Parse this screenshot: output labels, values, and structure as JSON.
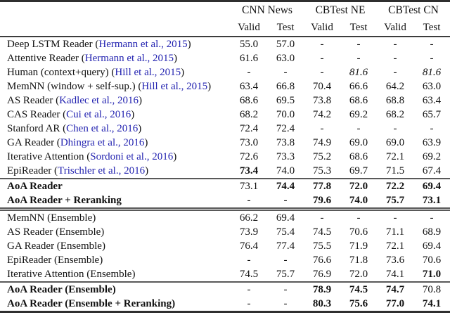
{
  "colors": {
    "citation_blue": "#2222b0",
    "text": "#111111",
    "heavy_rule": "#2f2f2f",
    "light_rule": "#595959"
  },
  "table": {
    "column_groups": [
      {
        "label": "CNN News",
        "sub": [
          "Valid",
          "Test"
        ]
      },
      {
        "label": "CBTest NE",
        "sub": [
          "Valid",
          "Test"
        ]
      },
      {
        "label": "CBTest CN",
        "sub": [
          "Valid",
          "Test"
        ]
      }
    ],
    "sections": [
      {
        "name": "single-models",
        "rows": [
          {
            "pre": "Deep LSTM Reader (",
            "cite": "Hermann et al., 2015",
            "post": ")",
            "bold_label": false,
            "cells": [
              {
                "t": "55.0",
                "s": ""
              },
              {
                "t": "57.0",
                "s": ""
              },
              {
                "t": "-",
                "s": ""
              },
              {
                "t": "-",
                "s": ""
              },
              {
                "t": "-",
                "s": ""
              },
              {
                "t": "-",
                "s": ""
              }
            ]
          },
          {
            "pre": "Attentive Reader (",
            "cite": "Hermann et al., 2015",
            "post": ")",
            "bold_label": false,
            "cells": [
              {
                "t": "61.6",
                "s": ""
              },
              {
                "t": "63.0",
                "s": ""
              },
              {
                "t": "-",
                "s": ""
              },
              {
                "t": "-",
                "s": ""
              },
              {
                "t": "-",
                "s": ""
              },
              {
                "t": "-",
                "s": ""
              }
            ]
          },
          {
            "pre": "Human (context+query) (",
            "cite": "Hill et al., 2015",
            "post": ")",
            "bold_label": false,
            "cells": [
              {
                "t": "-",
                "s": ""
              },
              {
                "t": "-",
                "s": ""
              },
              {
                "t": "-",
                "s": ""
              },
              {
                "t": "81.6",
                "s": "i"
              },
              {
                "t": "-",
                "s": ""
              },
              {
                "t": "81.6",
                "s": "i"
              }
            ]
          },
          {
            "pre": "MemNN (window + self-sup.) (",
            "cite": "Hill et al., 2015",
            "post": ")",
            "bold_label": false,
            "cells": [
              {
                "t": "63.4",
                "s": ""
              },
              {
                "t": "66.8",
                "s": ""
              },
              {
                "t": "70.4",
                "s": ""
              },
              {
                "t": "66.6",
                "s": ""
              },
              {
                "t": "64.2",
                "s": ""
              },
              {
                "t": "63.0",
                "s": ""
              }
            ]
          },
          {
            "pre": "AS Reader (",
            "cite": "Kadlec et al., 2016",
            "post": ")",
            "bold_label": false,
            "cells": [
              {
                "t": "68.6",
                "s": ""
              },
              {
                "t": "69.5",
                "s": ""
              },
              {
                "t": "73.8",
                "s": ""
              },
              {
                "t": "68.6",
                "s": ""
              },
              {
                "t": "68.8",
                "s": ""
              },
              {
                "t": "63.4",
                "s": ""
              }
            ]
          },
          {
            "pre": "CAS Reader (",
            "cite": "Cui et al., 2016",
            "post": ")",
            "bold_label": false,
            "cells": [
              {
                "t": "68.2",
                "s": ""
              },
              {
                "t": "70.0",
                "s": ""
              },
              {
                "t": "74.2",
                "s": ""
              },
              {
                "t": "69.2",
                "s": ""
              },
              {
                "t": "68.2",
                "s": ""
              },
              {
                "t": "65.7",
                "s": ""
              }
            ]
          },
          {
            "pre": "Stanford AR (",
            "cite": "Chen et al., 2016",
            "post": ")",
            "bold_label": false,
            "cells": [
              {
                "t": "72.4",
                "s": ""
              },
              {
                "t": "72.4",
                "s": ""
              },
              {
                "t": "-",
                "s": ""
              },
              {
                "t": "-",
                "s": ""
              },
              {
                "t": "-",
                "s": ""
              },
              {
                "t": "-",
                "s": ""
              }
            ]
          },
          {
            "pre": "GA Reader (",
            "cite": "Dhingra et al., 2016",
            "post": ")",
            "bold_label": false,
            "cells": [
              {
                "t": "73.0",
                "s": ""
              },
              {
                "t": "73.8",
                "s": ""
              },
              {
                "t": "74.9",
                "s": ""
              },
              {
                "t": "69.0",
                "s": ""
              },
              {
                "t": "69.0",
                "s": ""
              },
              {
                "t": "63.9",
                "s": ""
              }
            ]
          },
          {
            "pre": "Iterative Attention (",
            "cite": "Sordoni et al., 2016",
            "post": ")",
            "bold_label": false,
            "cells": [
              {
                "t": "72.6",
                "s": ""
              },
              {
                "t": "73.3",
                "s": ""
              },
              {
                "t": "75.2",
                "s": ""
              },
              {
                "t": "68.6",
                "s": ""
              },
              {
                "t": "72.1",
                "s": ""
              },
              {
                "t": "69.2",
                "s": ""
              }
            ]
          },
          {
            "pre": "EpiReader (",
            "cite": "Trischler et al., 2016",
            "post": ")",
            "bold_label": false,
            "cells": [
              {
                "t": "73.4",
                "s": "b"
              },
              {
                "t": "74.0",
                "s": ""
              },
              {
                "t": "75.3",
                "s": ""
              },
              {
                "t": "69.7",
                "s": ""
              },
              {
                "t": "71.5",
                "s": ""
              },
              {
                "t": "67.4",
                "s": ""
              }
            ]
          }
        ]
      },
      {
        "name": "aoa-single",
        "rows": [
          {
            "pre": "AoA Reader",
            "cite": "",
            "post": "",
            "bold_label": true,
            "cells": [
              {
                "t": "73.1",
                "s": ""
              },
              {
                "t": "74.4",
                "s": "b"
              },
              {
                "t": "77.8",
                "s": "b"
              },
              {
                "t": "72.0",
                "s": "b"
              },
              {
                "t": "72.2",
                "s": "b"
              },
              {
                "t": "69.4",
                "s": "b"
              }
            ]
          },
          {
            "pre": "AoA Reader + Reranking",
            "cite": "",
            "post": "",
            "bold_label": true,
            "cells": [
              {
                "t": "-",
                "s": ""
              },
              {
                "t": "-",
                "s": ""
              },
              {
                "t": "79.6",
                "s": "b"
              },
              {
                "t": "74.0",
                "s": "b"
              },
              {
                "t": "75.7",
                "s": "b"
              },
              {
                "t": "73.1",
                "s": "b"
              }
            ]
          }
        ]
      },
      {
        "name": "ensemble-models",
        "rows": [
          {
            "pre": "MemNN (Ensemble)",
            "cite": "",
            "post": "",
            "bold_label": false,
            "cells": [
              {
                "t": "66.2",
                "s": ""
              },
              {
                "t": "69.4",
                "s": ""
              },
              {
                "t": "-",
                "s": ""
              },
              {
                "t": "-",
                "s": ""
              },
              {
                "t": "-",
                "s": ""
              },
              {
                "t": "-",
                "s": ""
              }
            ]
          },
          {
            "pre": "AS Reader (Ensemble)",
            "cite": "",
            "post": "",
            "bold_label": false,
            "cells": [
              {
                "t": "73.9",
                "s": ""
              },
              {
                "t": "75.4",
                "s": ""
              },
              {
                "t": "74.5",
                "s": ""
              },
              {
                "t": "70.6",
                "s": ""
              },
              {
                "t": "71.1",
                "s": ""
              },
              {
                "t": "68.9",
                "s": ""
              }
            ]
          },
          {
            "pre": "GA Reader (Ensemble)",
            "cite": "",
            "post": "",
            "bold_label": false,
            "cells": [
              {
                "t": "76.4",
                "s": ""
              },
              {
                "t": "77.4",
                "s": ""
              },
              {
                "t": "75.5",
                "s": ""
              },
              {
                "t": "71.9",
                "s": ""
              },
              {
                "t": "72.1",
                "s": ""
              },
              {
                "t": "69.4",
                "s": ""
              }
            ]
          },
          {
            "pre": "EpiReader (Ensemble)",
            "cite": "",
            "post": "",
            "bold_label": false,
            "cells": [
              {
                "t": "-",
                "s": ""
              },
              {
                "t": "-",
                "s": ""
              },
              {
                "t": "76.6",
                "s": ""
              },
              {
                "t": "71.8",
                "s": ""
              },
              {
                "t": "73.6",
                "s": ""
              },
              {
                "t": "70.6",
                "s": ""
              }
            ]
          },
          {
            "pre": "Iterative Attention (Ensemble)",
            "cite": "",
            "post": "",
            "bold_label": false,
            "cells": [
              {
                "t": "74.5",
                "s": ""
              },
              {
                "t": "75.7",
                "s": ""
              },
              {
                "t": "76.9",
                "s": ""
              },
              {
                "t": "72.0",
                "s": ""
              },
              {
                "t": "74.1",
                "s": ""
              },
              {
                "t": "71.0",
                "s": "b"
              }
            ]
          }
        ]
      },
      {
        "name": "aoa-ensemble",
        "rows": [
          {
            "pre": "AoA Reader (Ensemble)",
            "cite": "",
            "post": "",
            "bold_label": true,
            "cells": [
              {
                "t": "-",
                "s": ""
              },
              {
                "t": "-",
                "s": ""
              },
              {
                "t": "78.9",
                "s": "b"
              },
              {
                "t": "74.5",
                "s": "b"
              },
              {
                "t": "74.7",
                "s": "b"
              },
              {
                "t": "70.8",
                "s": ""
              }
            ]
          },
          {
            "pre": "AoA Reader (Ensemble + Reranking)",
            "cite": "",
            "post": "",
            "bold_label": true,
            "cells": [
              {
                "t": "-",
                "s": ""
              },
              {
                "t": "-",
                "s": ""
              },
              {
                "t": "80.3",
                "s": "b"
              },
              {
                "t": "75.6",
                "s": "b"
              },
              {
                "t": "77.0",
                "s": "b"
              },
              {
                "t": "74.1",
                "s": "b"
              }
            ]
          }
        ]
      }
    ]
  }
}
